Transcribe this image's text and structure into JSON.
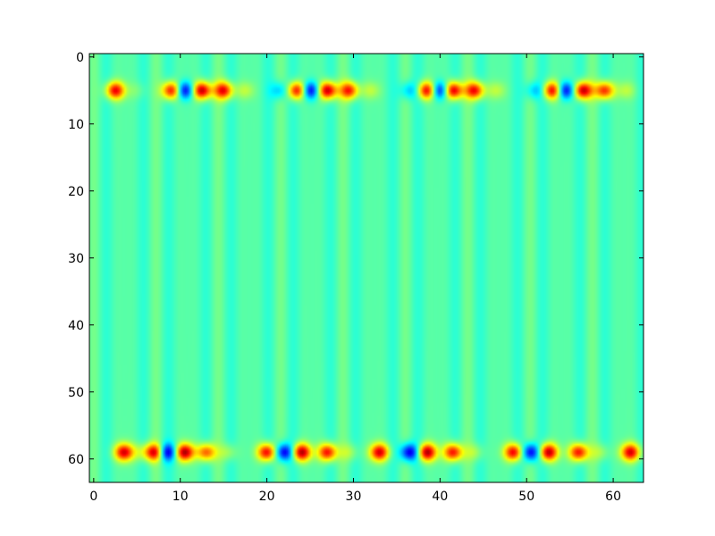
{
  "chart_data": {
    "type": "heatmap",
    "title": "",
    "xlabel": "",
    "ylabel": "",
    "colormap": "jet",
    "xlim": [
      -0.5,
      63.5
    ],
    "ylim": [
      63.5,
      -0.5
    ],
    "x_ticks": [
      0,
      10,
      20,
      30,
      40,
      50,
      60
    ],
    "y_ticks": [
      0,
      10,
      20,
      30,
      40,
      50,
      60
    ],
    "x_tick_labels": [
      "0",
      "10",
      "20",
      "30",
      "40",
      "50",
      "60"
    ],
    "y_tick_labels": [
      "0",
      "10",
      "20",
      "30",
      "40",
      "50",
      "60"
    ],
    "grid": false,
    "legend": "none",
    "background_value": 0.45,
    "stripe_period": 14.4,
    "hot_bands": [
      {
        "row": 5,
        "sigma_rows": 0.9,
        "blobs": [
          {
            "x": 2.5,
            "v": 0.88
          },
          {
            "x": 5,
            "v": 0.5
          },
          {
            "x": 9,
            "v": 0.9
          },
          {
            "x": 10.5,
            "v": 0.08
          },
          {
            "x": 12.5,
            "v": 0.95
          },
          {
            "x": 15,
            "v": 0.88
          },
          {
            "x": 17.5,
            "v": 0.55
          },
          {
            "x": 21.5,
            "v": 0.3
          },
          {
            "x": 23.5,
            "v": 0.9
          },
          {
            "x": 25,
            "v": 0.08
          },
          {
            "x": 27,
            "v": 0.95
          },
          {
            "x": 29.5,
            "v": 0.85
          },
          {
            "x": 32,
            "v": 0.55
          },
          {
            "x": 36.5,
            "v": 0.3
          },
          {
            "x": 38.5,
            "v": 0.9
          },
          {
            "x": 40,
            "v": 0.08
          },
          {
            "x": 41.5,
            "v": 0.95
          },
          {
            "x": 44,
            "v": 0.88
          },
          {
            "x": 46.5,
            "v": 0.55
          },
          {
            "x": 51,
            "v": 0.3
          },
          {
            "x": 53,
            "v": 0.9
          },
          {
            "x": 54.5,
            "v": 0.08
          },
          {
            "x": 56.5,
            "v": 0.95
          },
          {
            "x": 59,
            "v": 0.85
          },
          {
            "x": 61.5,
            "v": 0.55
          }
        ]
      },
      {
        "row": 59,
        "sigma_rows": 0.9,
        "blobs": [
          {
            "x": 3.5,
            "v": 0.9
          },
          {
            "x": 5.5,
            "v": 0.55
          },
          {
            "x": 7,
            "v": 0.9
          },
          {
            "x": 8.5,
            "v": 0.08
          },
          {
            "x": 10.5,
            "v": 0.95
          },
          {
            "x": 13,
            "v": 0.8
          },
          {
            "x": 15.5,
            "v": 0.55
          },
          {
            "x": 20,
            "v": 0.9
          },
          {
            "x": 22,
            "v": 0.08
          },
          {
            "x": 24,
            "v": 0.95
          },
          {
            "x": 27,
            "v": 0.88
          },
          {
            "x": 29.5,
            "v": 0.55
          },
          {
            "x": 33,
            "v": 0.9
          },
          {
            "x": 36.5,
            "v": 0.08
          },
          {
            "x": 38.5,
            "v": 0.95
          },
          {
            "x": 41.5,
            "v": 0.88
          },
          {
            "x": 44,
            "v": 0.55
          },
          {
            "x": 48.5,
            "v": 0.9
          },
          {
            "x": 50.5,
            "v": 0.08
          },
          {
            "x": 52.5,
            "v": 0.95
          },
          {
            "x": 56,
            "v": 0.88
          },
          {
            "x": 58.5,
            "v": 0.55
          },
          {
            "x": 62,
            "v": 0.9
          }
        ]
      }
    ]
  }
}
